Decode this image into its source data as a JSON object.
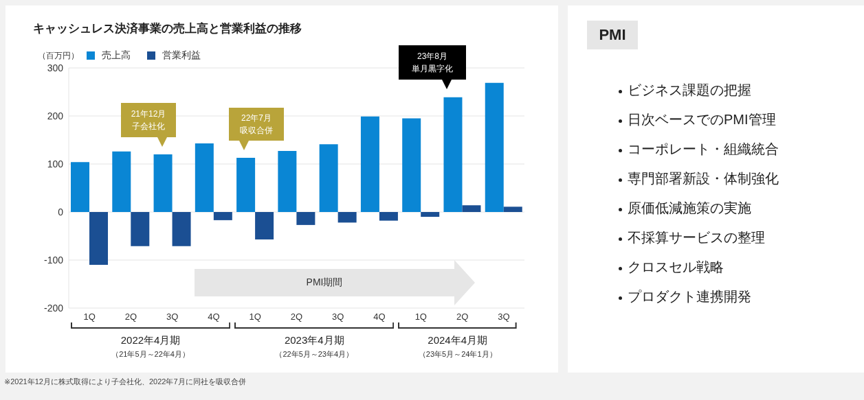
{
  "chart_data": [
    {
      "type": "bar",
      "title": "キャッシュレス決済事業の売上高と営業利益の推移",
      "ylabel": "（百万円）",
      "categories": [
        "1Q",
        "2Q",
        "3Q",
        "4Q",
        "1Q",
        "2Q",
        "3Q",
        "4Q",
        "1Q",
        "2Q",
        "3Q"
      ],
      "series": [
        {
          "name": "売上高",
          "color": "#0a86d4",
          "values": [
            104,
            126,
            120,
            143,
            113,
            127,
            141,
            199,
            195,
            239,
            269
          ]
        },
        {
          "name": "営業利益",
          "color": "#1b4f93",
          "values": [
            -110,
            -71,
            -71,
            -17,
            -57,
            -27,
            -22,
            -18,
            -10,
            14,
            11
          ]
        }
      ],
      "ylim": [
        -200,
        300
      ],
      "yticks": [
        -200,
        -100,
        0,
        100,
        200,
        300
      ],
      "grid": "y",
      "legend": "top left",
      "annotations": [
        "21年12月",
        "子会社化",
        "22年7月",
        "吸収合併",
        "23年8月",
        "単月黒字化",
        "PMI期間",
        "2022年4月期",
        "（21年5月～22年4月）",
        "2023年4月期",
        "（22年5月～23年4月）",
        "2024年4月期",
        "（23年5月～24年1月）",
        "※2021年12月に株式取得により子会社化、2022年7月に同社を吸収合併"
      ]
    },
    {
      "type": "other",
      "title": "PMI",
      "annotations": [
        "ビジネス課題の把握",
        "日次ベースでのPMI管理",
        "コーポレート・組織統合",
        "専門部署新設・体制強化",
        "原価低減施策の実施",
        "不採算サービスの整理",
        "クロスセル戦略",
        "プロダクト連携開発"
      ]
    }
  ]
}
